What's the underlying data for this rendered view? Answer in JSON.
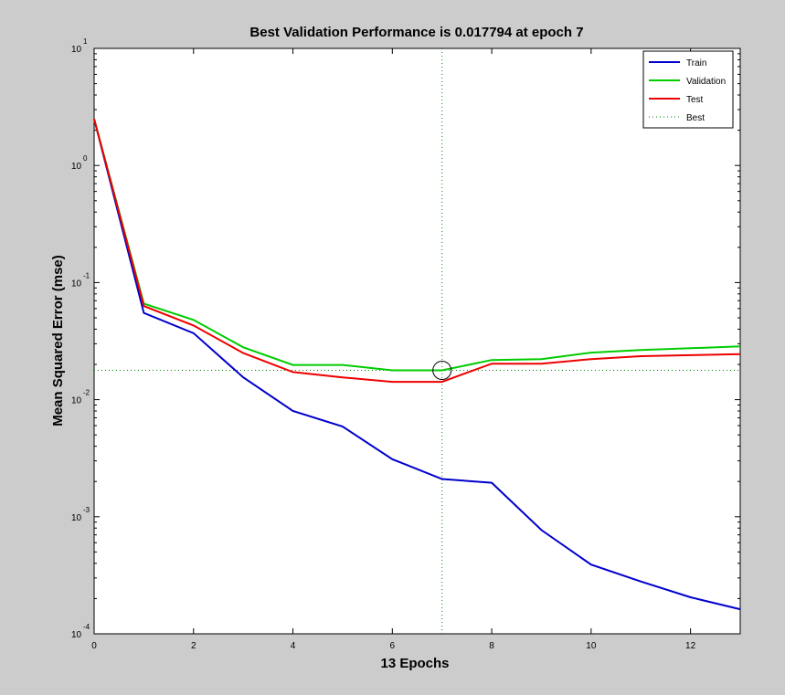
{
  "chart_data": {
    "type": "line",
    "title": "Best Validation Performance is 0.017794 at epoch 7",
    "xlabel": "13 Epochs",
    "ylabel": "Mean Squared Error  (mse)",
    "xlim": [
      0,
      13
    ],
    "ylim": [
      0.0001,
      10
    ],
    "yscale": "log",
    "x_ticks": [
      0,
      2,
      4,
      6,
      8,
      10,
      12
    ],
    "x_tick_labels": [
      "0",
      "2",
      "4",
      "6",
      "8",
      "10",
      "12"
    ],
    "y_ticks": [
      {
        "value": 10,
        "base": "10",
        "exp": "1"
      },
      {
        "value": 1,
        "base": "10",
        "exp": "0"
      },
      {
        "value": 0.1,
        "base": "10",
        "exp": "-1"
      },
      {
        "value": 0.01,
        "base": "10",
        "exp": "-2"
      },
      {
        "value": 0.001,
        "base": "10",
        "exp": "-3"
      },
      {
        "value": 0.0001,
        "base": "10",
        "exp": "-4"
      }
    ],
    "grid": false,
    "legend_position": "top-right",
    "x": [
      0,
      1,
      2,
      3,
      4,
      5,
      6,
      7,
      8,
      9,
      10,
      11,
      12,
      13
    ],
    "series": [
      {
        "name": "Train",
        "color": "#0000cc",
        "values": [
          2.5,
          0.055,
          0.037,
          0.0155,
          0.008,
          0.0059,
          0.0031,
          0.0021,
          0.00195,
          0.00077,
          0.00039,
          0.00028,
          0.000205,
          0.000162
        ]
      },
      {
        "name": "Validation",
        "color": "#00cc00",
        "values": [
          2.5,
          0.066,
          0.048,
          0.028,
          0.0198,
          0.0198,
          0.0178,
          0.017794,
          0.0218,
          0.0222,
          0.0252,
          0.0265,
          0.0275,
          0.0285
        ]
      },
      {
        "name": "Test",
        "color": "#ee0000",
        "values": [
          2.5,
          0.063,
          0.043,
          0.025,
          0.0172,
          0.0155,
          0.0142,
          0.0142,
          0.0203,
          0.0203,
          0.0222,
          0.0235,
          0.024,
          0.0245
        ]
      }
    ],
    "best": {
      "name": "Best",
      "epoch": 7,
      "value": 0.017794,
      "color": "#008800"
    }
  }
}
